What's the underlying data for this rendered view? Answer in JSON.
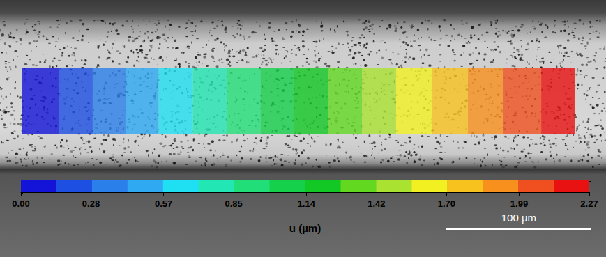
{
  "chart_data": {
    "type": "heatmap",
    "x_edges": [
      0,
      25,
      48.5,
      71.5,
      94,
      117.5,
      141,
      164,
      187,
      210.5,
      234,
      257.5,
      282.5,
      307,
      331.5,
      357.5,
      381
    ],
    "values": [
      0.07,
      0.21,
      0.35,
      0.5,
      0.64,
      0.78,
      0.92,
      1.06,
      1.21,
      1.35,
      1.49,
      1.63,
      1.77,
      1.92,
      2.06,
      2.2
    ],
    "xlim": [
      0,
      381
    ],
    "tick_labels": false,
    "colorbar": {
      "label": "u (µm)",
      "range": [
        0,
        2.27
      ],
      "ticks": [
        {
          "value": 0,
          "label": "0.00"
        },
        0.28,
        0.57,
        0.85,
        1.14,
        1.42,
        {
          "value": 1.7,
          "label": "1.70"
        },
        1.99,
        2.27
      ],
      "colors": [
        "#1414d8",
        "#1c4fe2",
        "#2a7fea",
        "#2ea9f2",
        "#1fe0f2",
        "#22e6b4",
        "#22de78",
        "#14d04a",
        "#12c824",
        "#62d820",
        "#aae232",
        "#f2f020",
        "#f8c21e",
        "#f8901e",
        "#f05020",
        "#e81212"
      ]
    },
    "scale_bar": {
      "value": 100,
      "label": "100 µm"
    }
  }
}
